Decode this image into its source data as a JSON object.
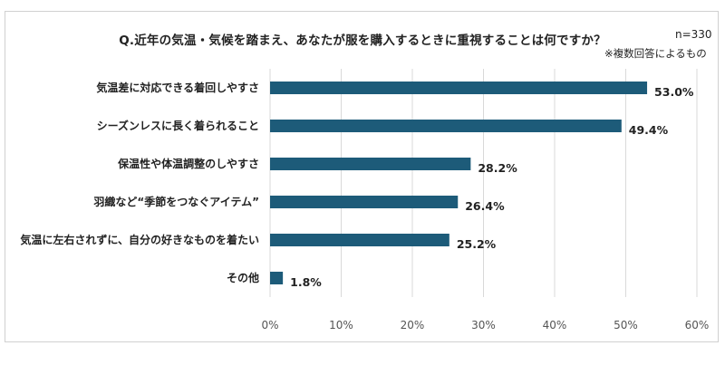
{
  "chart_data": {
    "type": "bar",
    "orientation": "horizontal",
    "title": "Q.近年の気温・気候を踏まえ、あなたが服を購入するときに重視することは何ですか？",
    "sample_size": "n=330",
    "note": "※複数回答によるもの",
    "categories": [
      "気温差に対応できる着回しやすさ",
      "シーズンレスに長く着られること",
      "保温性や体温調整のしやすさ",
      "羽織など“季節をつなぐアイテム”",
      "気温に左右されずに、自分の好きなものを着たい",
      "その他"
    ],
    "values": [
      53.0,
      49.4,
      28.2,
      26.4,
      25.2,
      1.8
    ],
    "value_labels": [
      "53.0%",
      "49.4%",
      "28.2%",
      "26.4%",
      "25.2%",
      "1.8%"
    ],
    "xlim": [
      0,
      60
    ],
    "xticks": [
      "0%",
      "10%",
      "20%",
      "30%",
      "40%",
      "50%",
      "60%"
    ],
    "grid": "vertical",
    "bar_color": "#1d5b79"
  }
}
